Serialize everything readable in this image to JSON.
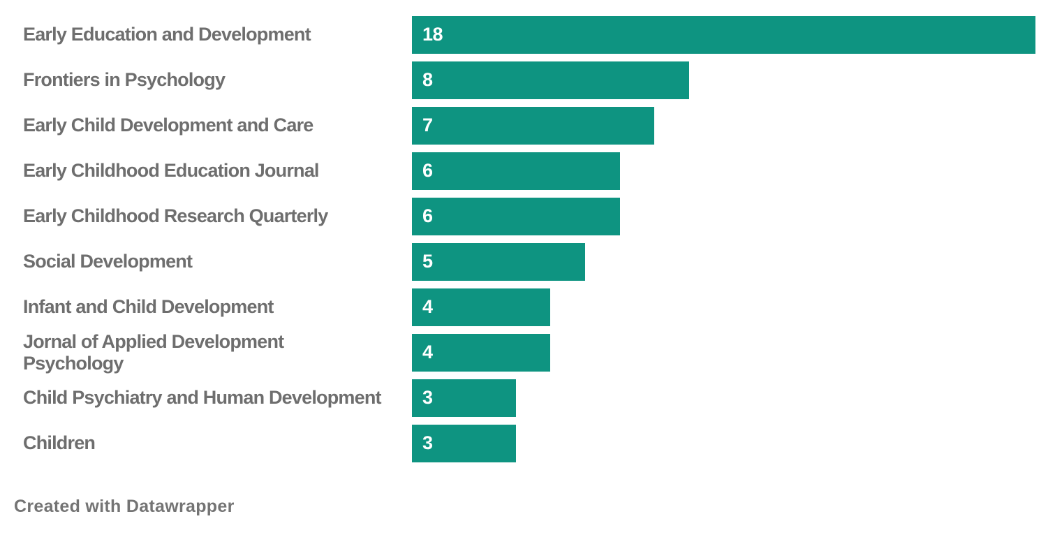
{
  "chart_data": {
    "type": "bar",
    "orientation": "horizontal",
    "title": "",
    "xlabel": "",
    "ylabel": "",
    "xlim": [
      0,
      18
    ],
    "grid": false,
    "legend": false,
    "bar_color": "#0e9481",
    "value_label_color": "#ffffff",
    "category_label_color": "#6e6e6e",
    "categories": [
      "Early Education and Development",
      "Frontiers in Psychology",
      "Early Child Development and Care",
      "Early Childhood Education Journal",
      "Early Childhood Research Quarterly",
      "Social Development",
      "Infant and Child Development",
      "Jornal of Applied Development\nPsychology",
      "Child Psychiatry and Human Development",
      "Children"
    ],
    "values": [
      18,
      8,
      7,
      6,
      6,
      5,
      4,
      4,
      3,
      3
    ]
  },
  "footer": {
    "attribution": "Created with Datawrapper"
  }
}
